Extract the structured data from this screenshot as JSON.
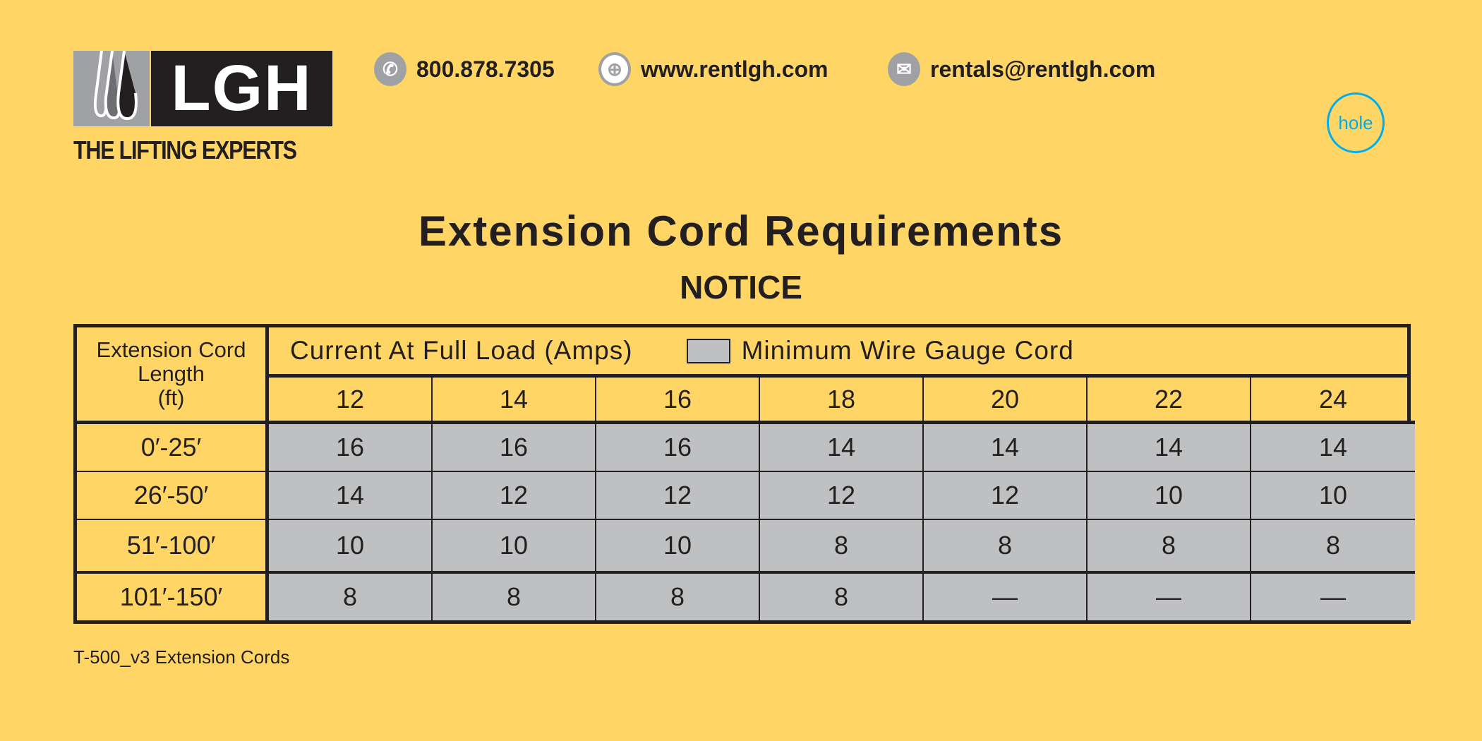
{
  "logo": {
    "text": "LGH",
    "tagline": "THE LIFTING EXPERTS"
  },
  "contact": {
    "phone": {
      "icon": "phone-icon",
      "text": "800.878.7305"
    },
    "web": {
      "icon": "globe-icon",
      "text": "www.rentlgh.com"
    },
    "email": {
      "icon": "mail-icon",
      "text": "rentals@rentlgh.com"
    }
  },
  "hole_label": "hole",
  "title": "Extension Cord Requirements",
  "subtitle": "NOTICE",
  "table": {
    "row_header": [
      "Extension Cord",
      "Length",
      "(ft)"
    ],
    "amps_header": "Current At Full Load (Amps)",
    "legend_label": "Minimum Wire Gauge Cord",
    "amps": [
      "12",
      "14",
      "16",
      "18",
      "20",
      "22",
      "24"
    ],
    "rows": [
      {
        "length": "0′-25′",
        "values": [
          "16",
          "16",
          "16",
          "14",
          "14",
          "14",
          "14"
        ]
      },
      {
        "length": "26′-50′",
        "values": [
          "14",
          "12",
          "12",
          "12",
          "12",
          "10",
          "10"
        ]
      },
      {
        "length": "51′-100′",
        "values": [
          "10",
          "10",
          "10",
          "8",
          "8",
          "8",
          "8"
        ]
      },
      {
        "length": "101′-150′",
        "values": [
          "8",
          "8",
          "8",
          "8",
          "—",
          "—",
          "—"
        ]
      }
    ]
  },
  "footer": "T-500_v3 Extension Cords",
  "colors": {
    "background": "#FFD666",
    "gauge_cell": "#BFC0C2",
    "text": "#231F20",
    "hole": "#00AEEF"
  }
}
